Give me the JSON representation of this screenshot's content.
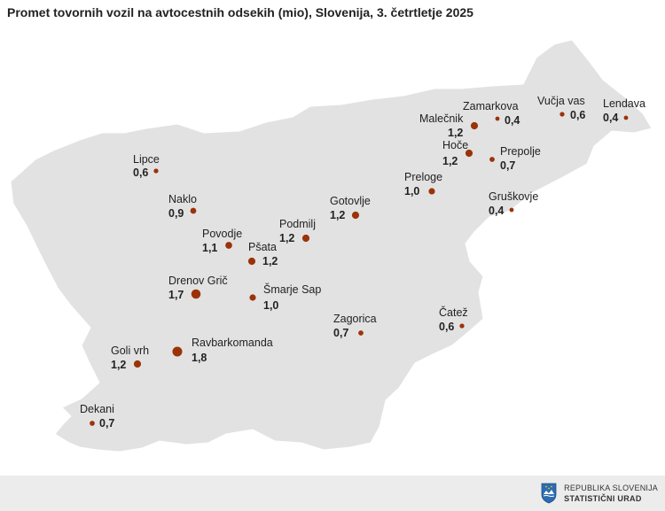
{
  "title": "Promet tovornih vozil na avtocestnih odsekih (mio), Slovenija, 3. četrtletje 2025",
  "colors": {
    "land": "#e2e2e2",
    "marker": "#9b3309",
    "footer": "#ececec",
    "logo_blue": "#2b6cb0"
  },
  "locations": [
    {
      "name": "Lipce",
      "value": "0,6"
    },
    {
      "name": "Naklo",
      "value": "0,9"
    },
    {
      "name": "Povodje",
      "value": "1,1"
    },
    {
      "name": "Pšata",
      "value": "1,2"
    },
    {
      "name": "Podmilj",
      "value": "1,2"
    },
    {
      "name": "Gotovlje",
      "value": "1,2"
    },
    {
      "name": "Drenov Grič",
      "value": "1,7"
    },
    {
      "name": "Šmarje Sap",
      "value": "1,0"
    },
    {
      "name": "Ravbarkomanda",
      "value": "1,8"
    },
    {
      "name": "Goli vrh",
      "value": "1,2"
    },
    {
      "name": "Dekani",
      "value": "0,7"
    },
    {
      "name": "Zagorica",
      "value": "0,7"
    },
    {
      "name": "Čatež",
      "value": "0,6"
    },
    {
      "name": "Preloge",
      "value": "1,0"
    },
    {
      "name": "Gruškovje",
      "value": "0,4"
    },
    {
      "name": "Hoče",
      "value": "1,2"
    },
    {
      "name": "Prepolje",
      "value": "0,7"
    },
    {
      "name": "Malečnik",
      "value": "1,2"
    },
    {
      "name": "Zamarkova",
      "value": "0,4"
    },
    {
      "name": "Vučja vas",
      "value": "0,6"
    },
    {
      "name": "Lendava",
      "value": "0,4"
    }
  ],
  "footer": {
    "logo_line1": "REPUBLIKA SLOVENIJA",
    "logo_line2": "STATISTIČNI URAD"
  }
}
